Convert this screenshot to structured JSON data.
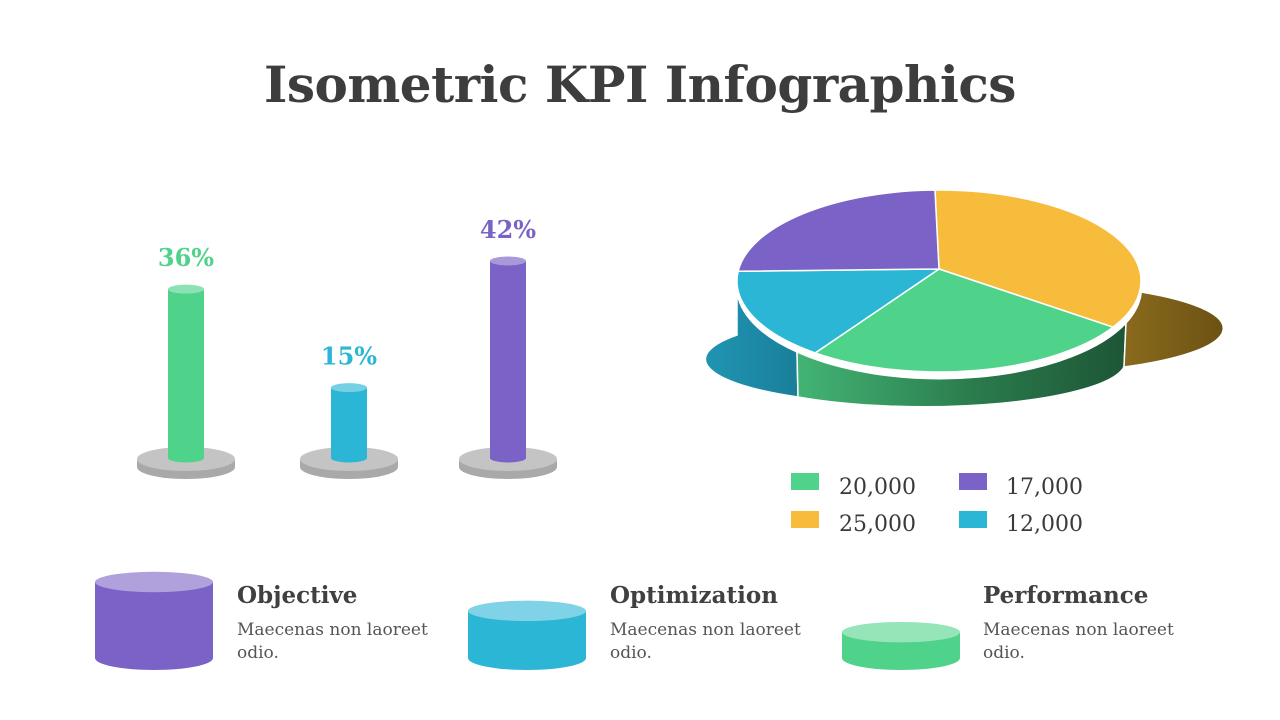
{
  "title": "Isometric KPI Infographics",
  "colors": {
    "green": "#4fd38b",
    "blue": "#2bb6d6",
    "purple": "#7b62c6",
    "yellow": "#f8bc3c",
    "base": "#c4c4c4"
  },
  "chart_data": [
    {
      "type": "bar",
      "categories": [
        "",
        "",
        ""
      ],
      "values": [
        36,
        15,
        42
      ],
      "labels": [
        "36%",
        "15%",
        "42%"
      ],
      "colors": [
        "#4fd38b",
        "#2bb6d6",
        "#7b62c6"
      ]
    },
    {
      "type": "pie",
      "slices": [
        {
          "label": "25,000",
          "value": 25000,
          "color": "#f8bc3c"
        },
        {
          "label": "20,000",
          "value": 20000,
          "color": "#4fd38b"
        },
        {
          "label": "12,000",
          "value": 12000,
          "color": "#2bb6d6"
        },
        {
          "label": "17,000",
          "value": 17000,
          "color": "#7b62c6"
        }
      ],
      "legend": [
        "20,000",
        "17,000",
        "25,000",
        "12,000"
      ]
    }
  ],
  "cards": [
    {
      "title": "Objective",
      "description": "Maecenas non laoreet odio.",
      "color": "#7b62c6",
      "level": 1.0
    },
    {
      "title": "Optimization",
      "description": "Maecenas non laoreet odio.",
      "color": "#2bb6d6",
      "level": 0.62
    },
    {
      "title": "Performance",
      "description": "Maecenas non laoreet odio.",
      "color": "#4fd38b",
      "level": 0.34
    }
  ]
}
